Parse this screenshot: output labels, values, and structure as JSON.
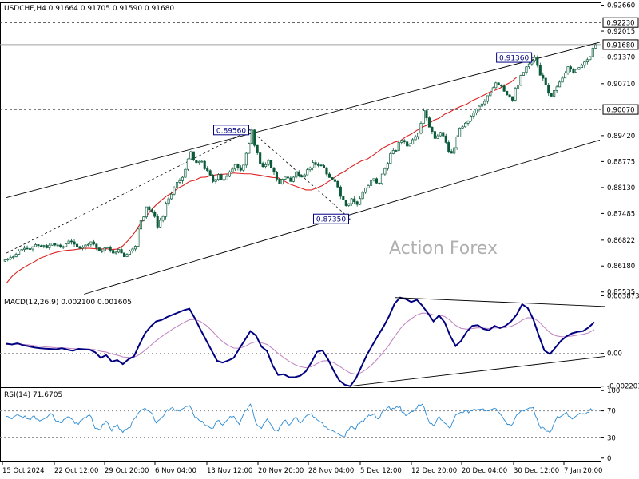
{
  "chart_data": [
    {
      "type": "candlestick",
      "panel": "price",
      "header": {
        "symbol": "USDCHF,H4",
        "open": "0.91664",
        "high": "0.91705",
        "low": "0.91590",
        "close": "0.91680"
      },
      "watermark": "Action Forex",
      "y_ticks": [
        "0.92660",
        "0.92015",
        "0.91370",
        "0.90710",
        "0.89420",
        "0.88775",
        "0.88130",
        "0.87485",
        "0.86822",
        "0.86180",
        "0.85535"
      ],
      "ylim": [
        0.8547,
        0.9273
      ],
      "horizontal_levels": [
        {
          "value": 0.9223,
          "label": "0.92230",
          "style": "dashed"
        },
        {
          "value": 0.9007,
          "label": "0.90070",
          "style": "dashed"
        },
        {
          "value": 0.9168,
          "label": "0.91680",
          "style": "solid-gray",
          "note": "current price"
        }
      ],
      "annotations": [
        {
          "label": "0.89560",
          "value": 0.8956,
          "at": "20 Nov"
        },
        {
          "label": "0.87350",
          "value": 0.8735,
          "at": "6 Dec"
        },
        {
          "label": "0.91360",
          "value": 0.9136,
          "at": "2 Jan"
        }
      ],
      "close_series": [
        0.8635,
        0.8641,
        0.8655,
        0.8662,
        0.866,
        0.8671,
        0.8668,
        0.8663,
        0.8675,
        0.867,
        0.8666,
        0.868,
        0.8672,
        0.8662,
        0.867,
        0.8678,
        0.8663,
        0.8655,
        0.8665,
        0.865,
        0.8659,
        0.8641,
        0.8655,
        0.8667,
        0.8731,
        0.8765,
        0.8752,
        0.8715,
        0.8741,
        0.8785,
        0.8812,
        0.883,
        0.8858,
        0.8902,
        0.8875,
        0.8878,
        0.8855,
        0.8828,
        0.8845,
        0.8832,
        0.8852,
        0.887,
        0.8856,
        0.8898,
        0.8956,
        0.8899,
        0.8865,
        0.888,
        0.8851,
        0.8822,
        0.8839,
        0.8828,
        0.8852,
        0.8839,
        0.8857,
        0.8875,
        0.8869,
        0.8862,
        0.8838,
        0.8828,
        0.8791,
        0.8768,
        0.8785,
        0.8771,
        0.8801,
        0.8818,
        0.8835,
        0.8823,
        0.886,
        0.8897,
        0.8905,
        0.893,
        0.8916,
        0.8932,
        0.8948,
        0.9004,
        0.8963,
        0.8935,
        0.895,
        0.8925,
        0.8898,
        0.8939,
        0.8964,
        0.8978,
        0.8998,
        0.9015,
        0.9027,
        0.9048,
        0.9073,
        0.9065,
        0.9043,
        0.903,
        0.9068,
        0.9099,
        0.912,
        0.9136,
        0.9092,
        0.9068,
        0.904,
        0.9063,
        0.9085,
        0.9113,
        0.9099,
        0.9111,
        0.9125,
        0.9138,
        0.9168
      ],
      "ma_series": [
        0.8575,
        0.8592,
        0.8604,
        0.8613,
        0.8621,
        0.8628,
        0.8637,
        0.8642,
        0.8648,
        0.8652,
        0.8655,
        0.8657,
        0.8658,
        0.866,
        0.8662,
        0.8662,
        0.8661,
        0.866,
        0.8661,
        0.8659,
        0.866,
        0.8668,
        0.8682,
        0.8699,
        0.872,
        0.8738,
        0.8755,
        0.877,
        0.8782,
        0.8793,
        0.8801,
        0.8812,
        0.8819,
        0.8828,
        0.8831,
        0.8838,
        0.8839,
        0.8843,
        0.8845,
        0.8846,
        0.8847,
        0.8849,
        0.8848,
        0.8847,
        0.8847,
        0.8845,
        0.8843,
        0.884,
        0.8838,
        0.8837,
        0.883,
        0.8822,
        0.8817,
        0.8812,
        0.8807,
        0.8807,
        0.8812,
        0.8818,
        0.8827,
        0.8836,
        0.8846,
        0.8853,
        0.8863,
        0.8871,
        0.8879,
        0.8883,
        0.8892,
        0.8902,
        0.8912,
        0.8919,
        0.8926,
        0.8929,
        0.8939,
        0.8946,
        0.8955,
        0.8963,
        0.8969,
        0.898,
        0.8985,
        0.8995,
        0.9001,
        0.9009,
        0.9015,
        0.902,
        0.9029,
        0.9035,
        0.9042,
        0.9049,
        0.9054,
        0.906,
        0.9068,
        0.9075,
        0.9087
      ],
      "channel": {
        "upper": [
          [
            0,
            0.8788
          ],
          [
            107,
            0.9174
          ]
        ],
        "lower": [
          [
            14,
            0.8548
          ],
          [
            107,
            0.8931
          ]
        ]
      },
      "retrace_line": [
        [
          0,
          0.865
        ],
        [
          44,
          0.8956
        ],
        [
          62,
          0.8735
        ]
      ]
    },
    {
      "type": "line",
      "panel": "macd",
      "title": "MACD(12,26,9) 0.002100 0.001605",
      "y_ticks": [
        "0.003873",
        "0.00",
        "-0.002201"
      ],
      "ylim": [
        -0.00227,
        0.00395
      ],
      "series": [
        {
          "name": "MACD",
          "color": "#000080",
          "values": [
            0.00065,
            0.0006,
            0.00068,
            0.00055,
            0.00048,
            0.0004,
            0.00035,
            0.00032,
            0.0003,
            0.00028,
            0.00035,
            0.00025,
            0.00018,
            0.0003,
            0.00028,
            0.00025,
            8e-05,
            -0.0003,
            -0.00012,
            -0.00055,
            -0.00045,
            -0.00072,
            -0.0004,
            -0.0002,
            0.0006,
            0.00135,
            0.0018,
            0.00215,
            0.00225,
            0.00245,
            0.0026,
            0.00275,
            0.0029,
            0.003,
            0.00235,
            0.0016,
            0.0009,
            0.0002,
            -0.0005,
            -0.00062,
            -0.00048,
            -0.0003,
            0.00032,
            0.0009,
            0.0015,
            0.0012,
            0.00045,
            0.00015,
            -0.0008,
            -0.00145,
            -0.0014,
            -0.0016,
            -0.0016,
            -0.0015,
            -0.0012,
            -0.0006,
            0.0001,
            0.0002,
            -0.0004,
            -0.00115,
            -0.0018,
            -0.0021,
            -0.0022,
            -0.0017,
            -0.0009,
            -0.0001,
            0.00055,
            0.0012,
            0.0018,
            0.0025,
            0.00335,
            0.00375,
            0.00365,
            0.00345,
            0.0036,
            0.0032,
            0.0027,
            0.00215,
            0.00255,
            0.0021,
            0.0012,
            0.0005,
            0.00085,
            0.00145,
            0.00185,
            0.0019,
            0.00165,
            0.00155,
            0.00185,
            0.0017,
            0.00185,
            0.00215,
            0.0026,
            0.0033,
            0.00305,
            0.0023,
            0.0012,
            0.0002,
            -5e-05,
            0.0004,
            0.00085,
            0.00115,
            0.00135,
            0.00145,
            0.0015,
            0.00175,
            0.0021
          ]
        },
        {
          "name": "Signal",
          "color": "#c080c0",
          "values": [
            0.0006,
            0.00061,
            0.00062,
            0.0006,
            0.00057,
            0.00052,
            0.00048,
            0.00044,
            0.00041,
            0.00038,
            0.00037,
            0.00035,
            0.00032,
            0.00031,
            0.0003,
            0.00029,
            0.00025,
            0.00014,
            9e-05,
            -4e-05,
            -0.00012,
            -0.00024,
            -0.00027,
            -0.00026,
            -8e-05,
            0.00021,
            0.00053,
            0.00085,
            0.00113,
            0.00139,
            0.00164,
            0.00186,
            0.00207,
            0.00226,
            0.00228,
            0.00214,
            0.00189,
            0.00155,
            0.00114,
            0.00079,
            0.00053,
            0.00036,
            0.00035,
            0.00046,
            0.00067,
            0.00078,
            0.00071,
            0.0006,
            0.00032,
            0.0,
            -0.00028,
            -0.00054,
            -0.00075,
            -0.0009,
            -0.00096,
            -0.00089,
            -0.00069,
            -0.00051,
            -0.00049,
            -0.00062,
            -0.00085,
            -0.0011,
            -0.00132,
            -0.00139,
            -0.00129,
            -0.00105,
            -0.00073,
            -0.00034,
            9e-05,
            0.00057,
            0.00113,
            0.00165,
            0.00205,
            0.00233,
            0.00258,
            0.00271,
            0.0027,
            0.00259,
            0.00258,
            0.00248,
            0.00223,
            0.00188,
            0.00168,
            0.00163,
            0.00167,
            0.00172,
            0.0017,
            0.00167,
            0.00171,
            0.00171,
            0.00174,
            0.00182,
            0.00198,
            0.00224,
            0.0024,
            0.00238,
            0.00214,
            0.00175,
            0.00139,
            0.00119,
            0.00112,
            0.00113,
            0.00117,
            0.00123,
            0.00128,
            0.00138,
            0.0016
          ]
        }
      ],
      "trend_lines": [
        [
          [
            70,
            0.00375
          ],
          [
            108,
            0.00315
          ]
        ],
        [
          [
            62,
            -0.0022
          ],
          [
            108,
            -0.0002
          ]
        ]
      ]
    },
    {
      "type": "line",
      "panel": "rsi",
      "title": "RSI(14) 71.6705",
      "y_ticks": [
        "100",
        "70",
        "30",
        "0"
      ],
      "ylim": [
        -5,
        105
      ],
      "series": [
        {
          "name": "RSI",
          "color": "#2a8ad4",
          "values": [
            62,
            58,
            65,
            60,
            58,
            63,
            55,
            59,
            66,
            54,
            52,
            61,
            57,
            50,
            60,
            64,
            44,
            42,
            55,
            40,
            50,
            38,
            45,
            58,
            69,
            74,
            68,
            52,
            60,
            72,
            75,
            70,
            74,
            78,
            60,
            55,
            48,
            44,
            55,
            49,
            58,
            62,
            50,
            70,
            80,
            52,
            44,
            58,
            46,
            40,
            55,
            49,
            60,
            52,
            62,
            66,
            57,
            52,
            43,
            40,
            35,
            31,
            46,
            43,
            55,
            60,
            64,
            58,
            72,
            76,
            73,
            76,
            63,
            69,
            74,
            80,
            58,
            48,
            62,
            52,
            44,
            64,
            68,
            71,
            70,
            72,
            73,
            70,
            74,
            66,
            54,
            48,
            64,
            71,
            73,
            75,
            50,
            44,
            38,
            56,
            62,
            68,
            58,
            64,
            66,
            68,
            72
          ]
        }
      ],
      "levels": [
        70,
        30
      ]
    }
  ],
  "x_ticks": [
    "15 Oct 2024",
    "22 Oct 12:00",
    "29 Oct 20:00",
    "6 Nov 04:00",
    "13 Nov 12:00",
    "20 Nov 20:00",
    "28 Nov 04:00",
    "5 Dec 12:00",
    "12 Dec 20:00",
    "20 Dec 04:00",
    "30 Dec 12:00",
    "7 Jan 20:00"
  ],
  "colors": {
    "bull": "#0a5a3a",
    "ma": "#dd2222",
    "grid_level": "#333333",
    "price_line": "#a0a0a0"
  }
}
